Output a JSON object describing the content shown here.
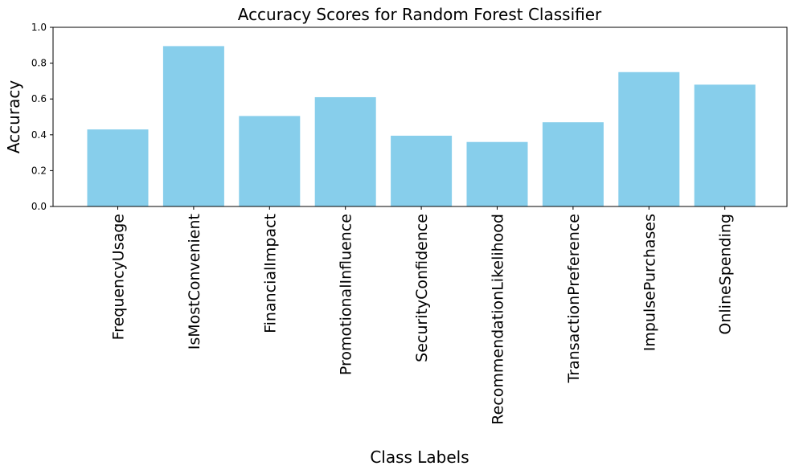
{
  "chart_data": {
    "type": "bar",
    "title": "Accuracy Scores for Random Forest Classifier",
    "xlabel": "Class Labels",
    "ylabel": "Accuracy",
    "ylim": [
      0,
      1.0
    ],
    "yticks": [
      "0.0",
      "0.2",
      "0.4",
      "0.6",
      "0.8",
      "1.0"
    ],
    "categories": [
      "FrequencyUsage",
      "IsMostConvenient",
      "FinancialImpact",
      "PromotionalInfluence",
      "SecurityConfidence",
      "RecommendationLikelihood",
      "TransactionPreference",
      "ImpulsePurchases",
      "OnlineSpending"
    ],
    "values": [
      0.43,
      0.895,
      0.505,
      0.61,
      0.395,
      0.36,
      0.47,
      0.75,
      0.68
    ],
    "bar_color": "#87ceeb",
    "grid": false,
    "legend": false
  }
}
